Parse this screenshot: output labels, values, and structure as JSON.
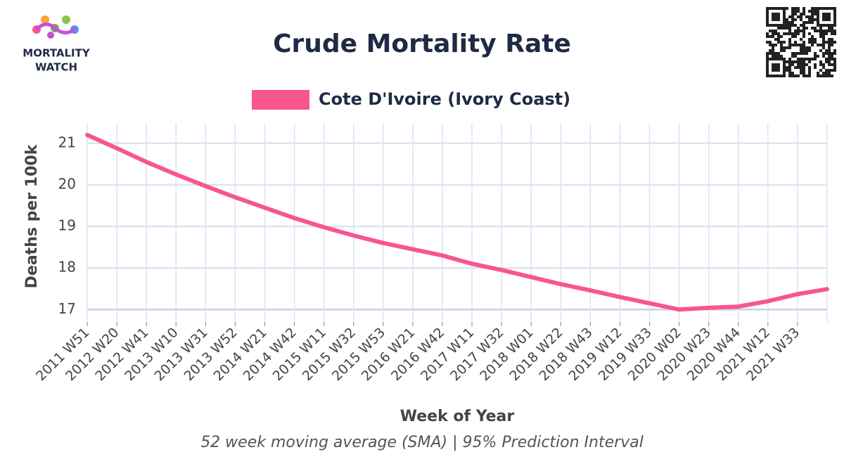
{
  "logo": [
    "MORTALITY",
    "WATCH"
  ],
  "chart_data": {
    "type": "line",
    "title": "Crude Mortality Rate",
    "subtitle": "52 week moving average (SMA) | 95% Prediction Interval",
    "x_label": "Week of Year",
    "y_label": "Deaths per 100k",
    "categories": [
      "2011 W51",
      "2012 W20",
      "2012 W41",
      "2013 W10",
      "2013 W31",
      "2013 W52",
      "2014 W21",
      "2014 W42",
      "2015 W11",
      "2015 W32",
      "2015 W53",
      "2016 W21",
      "2016 W42",
      "2017 W11",
      "2017 W32",
      "2018 W01",
      "2018 W22",
      "2018 W43",
      "2019 W12",
      "2019 W33",
      "2020 W02",
      "2020 W23",
      "2020 W44",
      "2021 W12",
      "2021 W33",
      null
    ],
    "series": [
      {
        "name": "Cote D'Ivoire (Ivory Coast)",
        "color": "#f7568f",
        "values": [
          21.2,
          20.88,
          20.55,
          20.25,
          19.97,
          19.7,
          19.45,
          19.2,
          18.98,
          18.78,
          18.6,
          18.45,
          18.3,
          18.1,
          17.95,
          17.78,
          17.61,
          17.46,
          17.3,
          17.15,
          17.0,
          17.04,
          17.07,
          17.2,
          17.37,
          17.49
        ]
      }
    ],
    "ylim": [
      16.7,
      21.47
    ],
    "yticks": [
      17,
      18,
      19,
      20,
      21
    ],
    "grid": true,
    "legend": "top"
  }
}
